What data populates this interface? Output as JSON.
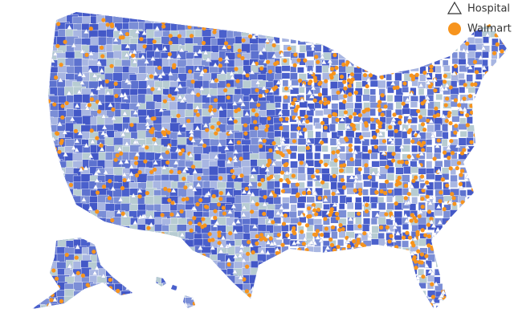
{
  "legend": {
    "items": [
      {
        "label": "Hospital"
      },
      {
        "label": "Walmart"
      }
    ]
  }
}
